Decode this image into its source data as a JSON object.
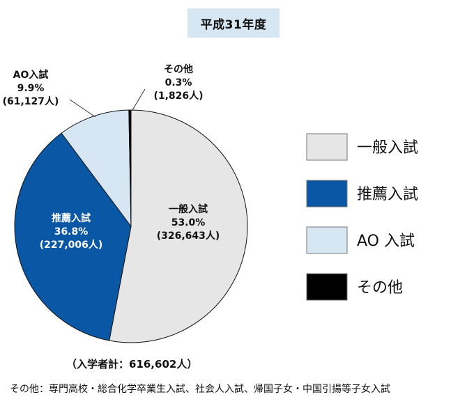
{
  "title": "平成31年度",
  "chart_data": {
    "type": "pie",
    "slices": [
      {
        "name": "一般入試",
        "percent": 53.0,
        "percent_label": "53.0%",
        "count_label": "(326,643人)",
        "color": "#e6e6e6",
        "label_color": "#111111"
      },
      {
        "name": "推薦入試",
        "percent": 36.8,
        "percent_label": "36.8%",
        "count_label": "(227,006人)",
        "color": "#0a57a5",
        "label_color": "#ffffff"
      },
      {
        "name": "AO入試",
        "percent": 9.9,
        "percent_label": "9.9%",
        "count_label": "(61,127人)",
        "color": "#d7e6f3",
        "label_color": "#111111"
      },
      {
        "name": "その他",
        "percent": 0.3,
        "percent_label": "0.3%",
        "count_label": "(1,826人)",
        "color": "#000000",
        "label_color": "#111111"
      }
    ],
    "legend": {
      "position": "right",
      "entries": [
        {
          "label": "一般入試",
          "color": "#e6e6e6"
        },
        {
          "label": "推薦入試",
          "color": "#0a57a5"
        },
        {
          "label": "AO 入試",
          "color": "#d7e6f3"
        },
        {
          "label": "その他",
          "color": "#000000"
        }
      ]
    },
    "total_label": "（入学者計：616,602人）",
    "note": "その他：専門高校・総合化学卒業生入試、社会人入試、帰国子女・中国引揚等子女入試"
  }
}
